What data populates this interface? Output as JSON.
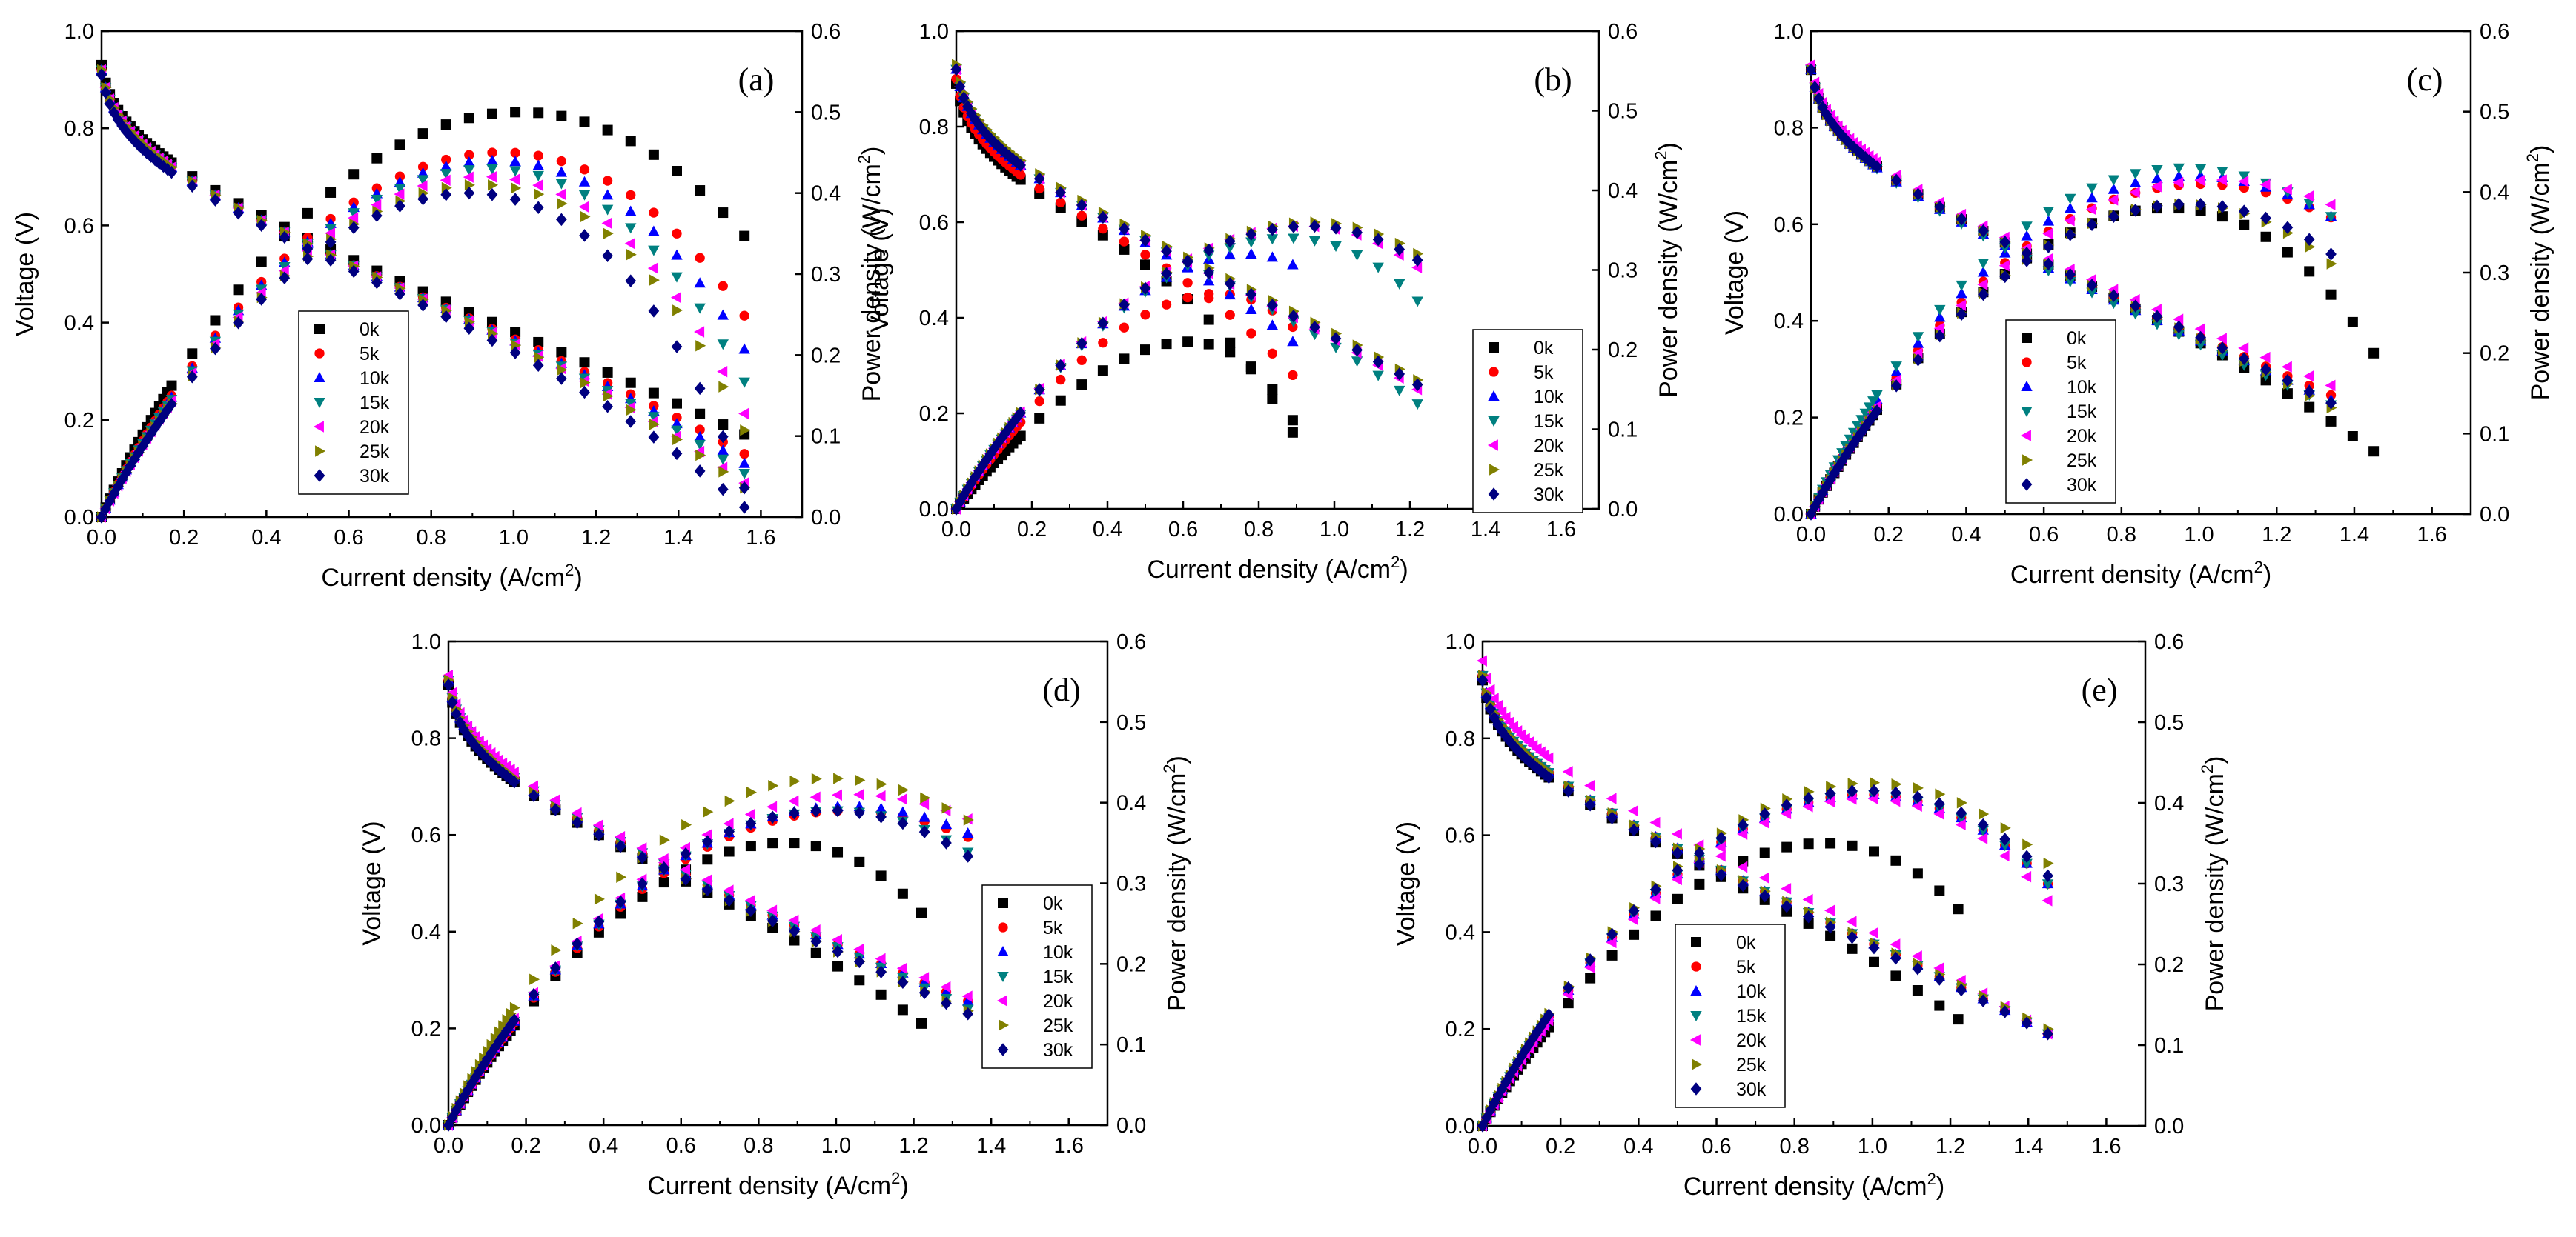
{
  "chart_data": [
    {
      "id": "a",
      "type": "scatter",
      "panel_label": "(a)",
      "xlabel": "Current density (A/cm",
      "xlabel_unit_exp": "2",
      "ylabel_left": "Voltage (V)",
      "ylabel_right": "Power density (W/cm",
      "ylabel_right_exp": "2",
      "xlim": [
        0,
        1.7
      ],
      "xticks": [
        "0.0",
        "0.2",
        "0.4",
        "0.6",
        "0.8",
        "1.0",
        "1.2",
        "1.4",
        "1.6"
      ],
      "ylim_left": [
        0,
        1.0
      ],
      "yticks_left": [
        "0.0",
        "0.2",
        "0.4",
        "0.6",
        "0.8",
        "1.0"
      ],
      "ylim_right": [
        0,
        0.6
      ],
      "yticks_right": [
        "0.0",
        "0.1",
        "0.2",
        "0.3",
        "0.4",
        "0.5",
        "0.6"
      ],
      "legend_position": "lower-left-center",
      "series": [
        {
          "name": "0k",
          "color": "#000000",
          "marker": "square",
          "i_max": 1.56,
          "v_ocv": 0.93,
          "v_end": 0.17,
          "p_max": 0.5
        },
        {
          "name": "5k",
          "color": "#ff0000",
          "marker": "circle",
          "i_max": 1.56,
          "v_ocv": 0.92,
          "v_end": 0.13,
          "p_max": 0.45
        },
        {
          "name": "10k",
          "color": "#0000ff",
          "marker": "triangle-up",
          "i_max": 1.56,
          "v_ocv": 0.92,
          "v_end": 0.11,
          "p_max": 0.44
        },
        {
          "name": "15k",
          "color": "#008080",
          "marker": "triangle-down",
          "i_max": 1.56,
          "v_ocv": 0.92,
          "v_end": 0.09,
          "p_max": 0.43
        },
        {
          "name": "20k",
          "color": "#ff00ff",
          "marker": "triangle-left",
          "i_max": 1.56,
          "v_ocv": 0.92,
          "v_end": 0.07,
          "p_max": 0.42
        },
        {
          "name": "25k",
          "color": "#808000",
          "marker": "triangle-right",
          "i_max": 1.56,
          "v_ocv": 0.92,
          "v_end": 0.06,
          "p_max": 0.41
        },
        {
          "name": "30k",
          "color": "#000080",
          "marker": "diamond",
          "i_max": 1.56,
          "v_ocv": 0.91,
          "v_end": 0.02,
          "p_max": 0.4
        }
      ]
    },
    {
      "id": "b",
      "type": "scatter",
      "panel_label": "(b)",
      "xlabel": "Current density (A/cm",
      "xlabel_unit_exp": "2",
      "ylabel_left": "Voltage (V)",
      "ylabel_right": "Power density (W/cm",
      "ylabel_right_exp": "2",
      "xlim": [
        0,
        1.7
      ],
      "xticks": [
        "0.0",
        "0.2",
        "0.4",
        "0.6",
        "0.8",
        "1.0",
        "1.2",
        "1.4",
        "1.6"
      ],
      "ylim_left": [
        0,
        1.0
      ],
      "yticks_left": [
        "0.0",
        "0.2",
        "0.4",
        "0.6",
        "0.8",
        "1.0"
      ],
      "ylim_right": [
        0,
        0.6
      ],
      "yticks_right": [
        "0.0",
        "0.1",
        "0.2",
        "0.3",
        "0.4",
        "0.5",
        "0.6"
      ],
      "legend_position": "right",
      "series": [
        {
          "name": "0k",
          "color": "#000000",
          "marker": "square",
          "i_max": 0.89,
          "v_ocv": 0.89,
          "v_end": 0.16,
          "p_max": 0.21
        },
        {
          "name": "5k",
          "color": "#ff0000",
          "marker": "circle",
          "i_max": 0.89,
          "v_ocv": 0.9,
          "v_end": 0.28,
          "p_max": 0.27
        },
        {
          "name": "10k",
          "color": "#0000ff",
          "marker": "triangle-up",
          "i_max": 0.89,
          "v_ocv": 0.92,
          "v_end": 0.35,
          "p_max": 0.32
        },
        {
          "name": "15k",
          "color": "#008080",
          "marker": "triangle-down",
          "i_max": 1.22,
          "v_ocv": 0.92,
          "v_end": 0.22,
          "p_max": 0.34
        },
        {
          "name": "20k",
          "color": "#ff00ff",
          "marker": "triangle-left",
          "i_max": 1.22,
          "v_ocv": 0.92,
          "v_end": 0.25,
          "p_max": 0.355
        },
        {
          "name": "25k",
          "color": "#808000",
          "marker": "triangle-right",
          "i_max": 1.22,
          "v_ocv": 0.93,
          "v_end": 0.27,
          "p_max": 0.36
        },
        {
          "name": "30k",
          "color": "#000080",
          "marker": "diamond",
          "i_max": 1.22,
          "v_ocv": 0.92,
          "v_end": 0.26,
          "p_max": 0.355
        }
      ]
    },
    {
      "id": "c",
      "type": "scatter",
      "panel_label": "(c)",
      "xlabel": "Current density (A/cm",
      "xlabel_unit_exp": "2",
      "ylabel_left": "Voltage (V)",
      "ylabel_right": "Power density (W/cm",
      "ylabel_right_exp": "2",
      "xlim": [
        0,
        1.7
      ],
      "xticks": [
        "0.0",
        "0.2",
        "0.4",
        "0.6",
        "0.8",
        "1.0",
        "1.2",
        "1.4",
        "1.6"
      ],
      "ylim_left": [
        0,
        1.0
      ],
      "yticks_left": [
        "0.0",
        "0.2",
        "0.4",
        "0.6",
        "0.8",
        "1.0"
      ],
      "ylim_right": [
        0,
        0.6
      ],
      "yticks_right": [
        "0.0",
        "0.1",
        "0.2",
        "0.3",
        "0.4",
        "0.5",
        "0.6"
      ],
      "legend_position": "lower-left-center",
      "series": [
        {
          "name": "0k",
          "color": "#000000",
          "marker": "square",
          "i_max": 1.45,
          "v_ocv": 0.92,
          "v_end": 0.13,
          "p_max": 0.38
        },
        {
          "name": "5k",
          "color": "#ff0000",
          "marker": "circle",
          "i_max": 1.34,
          "v_ocv": 0.92,
          "v_end": 0.27,
          "p_max": 0.41
        },
        {
          "name": "10k",
          "color": "#0000ff",
          "marker": "triangle-up",
          "i_max": 1.34,
          "v_ocv": 0.92,
          "v_end": 0.28,
          "p_max": 0.42
        },
        {
          "name": "15k",
          "color": "#008080",
          "marker": "triangle-down",
          "i_max": 1.34,
          "v_ocv": 0.92,
          "v_end": 0.29,
          "p_max": 0.43
        },
        {
          "name": "20k",
          "color": "#ff00ff",
          "marker": "triangle-left",
          "i_max": 1.34,
          "v_ocv": 0.93,
          "v_end": 0.27,
          "p_max": 0.415
        },
        {
          "name": "25k",
          "color": "#808000",
          "marker": "triangle-right",
          "i_max": 1.34,
          "v_ocv": 0.92,
          "v_end": 0.22,
          "p_max": 0.385
        },
        {
          "name": "30k",
          "color": "#000080",
          "marker": "diamond",
          "i_max": 1.34,
          "v_ocv": 0.92,
          "v_end": 0.23,
          "p_max": 0.385
        }
      ]
    },
    {
      "id": "d",
      "type": "scatter",
      "panel_label": "(d)",
      "xlabel": "Current density (A/cm",
      "xlabel_unit_exp": "2",
      "ylabel_left": "Voltage (V)",
      "ylabel_right": "Power density (W/cm",
      "ylabel_right_exp": "2",
      "xlim": [
        0,
        1.7
      ],
      "xticks": [
        "0.0",
        "0.2",
        "0.4",
        "0.6",
        "0.8",
        "1.0",
        "1.2",
        "1.4",
        "1.6"
      ],
      "ylim_left": [
        0,
        1.0
      ],
      "yticks_left": [
        "0.0",
        "0.2",
        "0.4",
        "0.6",
        "0.8",
        "1.0"
      ],
      "ylim_right": [
        0,
        0.6
      ],
      "yticks_right": [
        "0.0",
        "0.1",
        "0.2",
        "0.3",
        "0.4",
        "0.5",
        "0.6"
      ],
      "legend_position": "right",
      "series": [
        {
          "name": "0k",
          "color": "#000000",
          "marker": "square",
          "i_max": 1.22,
          "v_ocv": 0.91,
          "v_end": 0.21,
          "p_max": 0.35
        },
        {
          "name": "5k",
          "color": "#ff0000",
          "marker": "circle",
          "i_max": 1.34,
          "v_ocv": 0.92,
          "v_end": 0.26,
          "p_max": 0.39
        },
        {
          "name": "10k",
          "color": "#0000ff",
          "marker": "triangle-up",
          "i_max": 1.34,
          "v_ocv": 0.92,
          "v_end": 0.26,
          "p_max": 0.395
        },
        {
          "name": "15k",
          "color": "#008080",
          "marker": "triangle-down",
          "i_max": 1.34,
          "v_ocv": 0.92,
          "v_end": 0.24,
          "p_max": 0.39
        },
        {
          "name": "20k",
          "color": "#ff00ff",
          "marker": "triangle-left",
          "i_max": 1.34,
          "v_ocv": 0.93,
          "v_end": 0.27,
          "p_max": 0.41
        },
        {
          "name": "25k",
          "color": "#808000",
          "marker": "triangle-right",
          "i_max": 1.34,
          "v_ocv": 0.92,
          "v_end": 0.28,
          "p_max": 0.43
        },
        {
          "name": "30k",
          "color": "#000080",
          "marker": "diamond",
          "i_max": 1.34,
          "v_ocv": 0.91,
          "v_end": 0.23,
          "p_max": 0.39
        }
      ]
    },
    {
      "id": "e",
      "type": "scatter",
      "panel_label": "(e)",
      "xlabel": "Current density (A/cm",
      "xlabel_unit_exp": "2",
      "ylabel_left": "Voltage (V)",
      "ylabel_right": "Power density (W/cm",
      "ylabel_right_exp": "2",
      "xlim": [
        0,
        1.7
      ],
      "xticks": [
        "0.0",
        "0.2",
        "0.4",
        "0.6",
        "0.8",
        "1.0",
        "1.2",
        "1.4",
        "1.6"
      ],
      "ylim_left": [
        0,
        1.0
      ],
      "yticks_left": [
        "0.0",
        "0.2",
        "0.4",
        "0.6",
        "0.8",
        "1.0"
      ],
      "ylim_right": [
        0,
        0.6
      ],
      "yticks_right": [
        "0.0",
        "0.1",
        "0.2",
        "0.3",
        "0.4",
        "0.5",
        "0.6"
      ],
      "legend_position": "lower-left-center",
      "series": [
        {
          "name": "0k",
          "color": "#000000",
          "marker": "square",
          "i_max": 1.22,
          "v_ocv": 0.92,
          "v_end": 0.22,
          "p_max": 0.35
        },
        {
          "name": "5k",
          "color": "#ff0000",
          "marker": "circle",
          "i_max": 1.45,
          "v_ocv": 0.93,
          "v_end": 0.19,
          "p_max": 0.41
        },
        {
          "name": "10k",
          "color": "#0000ff",
          "marker": "triangle-up",
          "i_max": 1.45,
          "v_ocv": 0.93,
          "v_end": 0.19,
          "p_max": 0.41
        },
        {
          "name": "15k",
          "color": "#008080",
          "marker": "triangle-down",
          "i_max": 1.45,
          "v_ocv": 0.93,
          "v_end": 0.19,
          "p_max": 0.41
        },
        {
          "name": "20k",
          "color": "#ff00ff",
          "marker": "triangle-left",
          "i_max": 1.45,
          "v_ocv": 0.96,
          "v_end": 0.19,
          "p_max": 0.405
        },
        {
          "name": "25k",
          "color": "#808000",
          "marker": "triangle-right",
          "i_max": 1.45,
          "v_ocv": 0.93,
          "v_end": 0.2,
          "p_max": 0.425
        },
        {
          "name": "30k",
          "color": "#000080",
          "marker": "diamond",
          "i_max": 1.45,
          "v_ocv": 0.92,
          "v_end": 0.19,
          "p_max": 0.415
        }
      ]
    }
  ]
}
